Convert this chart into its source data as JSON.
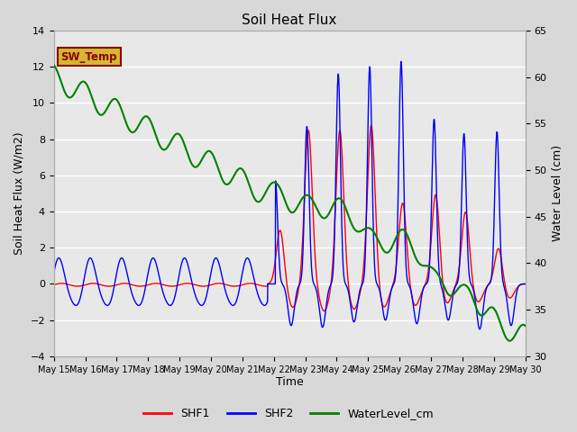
{
  "title": "Soil Heat Flux",
  "ylabel_left": "Soil Heat Flux (W/m2)",
  "ylabel_right": "Water Level (cm)",
  "xlabel": "Time",
  "ylim_left": [
    -4,
    14
  ],
  "ylim_right": [
    30,
    65
  ],
  "yticks_left": [
    -4,
    -2,
    0,
    2,
    4,
    6,
    8,
    10,
    12,
    14
  ],
  "yticks_right": [
    30,
    35,
    40,
    45,
    50,
    55,
    60,
    65
  ],
  "bg_color": "#d8d8d8",
  "plot_bg_color": "#e8e8e8",
  "shf1_color": "red",
  "shf2_color": "blue",
  "wl_color": "green",
  "sw_temp_text": "SW_Temp",
  "sw_temp_box_facecolor": "#d4b830",
  "sw_temp_text_color": "#8b0000",
  "xtick_labels": [
    "May 15",
    "May 16",
    "May 17",
    "May 18",
    "May 19",
    "May 20",
    "May 21",
    "May 22",
    "May 23",
    "May 24",
    "May 25",
    "May 26",
    "May 27",
    "May 28",
    "May 29",
    "May 30"
  ],
  "legend_labels": [
    "SHF1",
    "SHF2",
    "WaterLevel_cm"
  ]
}
